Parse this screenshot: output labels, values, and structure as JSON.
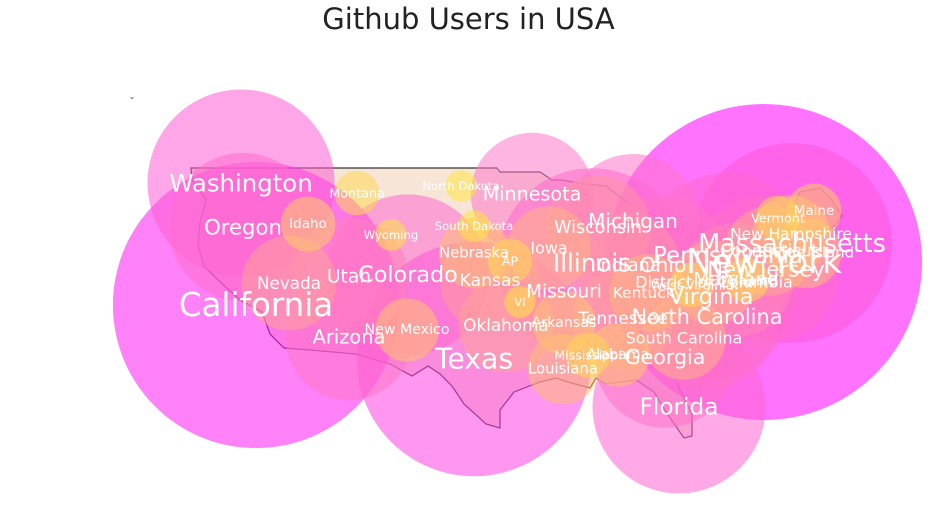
{
  "chart_data": {
    "type": "scatter",
    "title": "Github Users in USA",
    "encoding": "bubble map: circle area proportional to users, colour from pink-magenta (many users) to yellow (few users)",
    "grid": false,
    "legend": "none",
    "colors": {
      "high": "#ff00ff",
      "mid": "#ff66cc",
      "low": "#ffcc66",
      "lowest": "#ffee33",
      "land": "#f7e6d8",
      "outline": "#333333"
    },
    "points": [
      {
        "name": "California",
        "level": 0.82
      },
      {
        "name": "New York",
        "level": 1.0
      },
      {
        "name": "Washington",
        "level": 0.35
      },
      {
        "name": "Texas",
        "level": 0.55
      },
      {
        "name": "Massachusetts",
        "level": 0.4
      },
      {
        "name": "Florida",
        "level": 0.3
      },
      {
        "name": "Illinois",
        "level": 0.36
      },
      {
        "name": "Oregon",
        "level": 0.22
      },
      {
        "name": "Colorado",
        "level": 0.26
      },
      {
        "name": "Virginia",
        "level": 0.27
      },
      {
        "name": "Pennsylvania",
        "level": 0.28
      },
      {
        "name": "Ohio",
        "level": 0.19
      },
      {
        "name": "Michigan",
        "level": 0.18
      },
      {
        "name": "Georgia",
        "level": 0.2
      },
      {
        "name": "North Carolina",
        "level": 0.21
      },
      {
        "name": "Minnesota",
        "level": 0.15
      },
      {
        "name": "New Jersey",
        "level": 0.22
      },
      {
        "name": "Arizona",
        "level": 0.16
      },
      {
        "name": "Utah",
        "level": 0.14
      },
      {
        "name": "Missouri",
        "level": 0.13
      },
      {
        "name": "Maryland",
        "level": 0.13
      },
      {
        "name": "Indiana",
        "level": 0.11
      },
      {
        "name": "Wisconsin",
        "level": 0.11
      },
      {
        "name": "Tennessee",
        "level": 0.1
      },
      {
        "name": "Kansas",
        "level": 0.1
      },
      {
        "name": "Oklahoma",
        "level": 0.09
      },
      {
        "name": "Nevada",
        "level": 0.09
      },
      {
        "name": "Connecticut",
        "level": 0.08
      },
      {
        "name": "Iowa",
        "level": 0.07
      },
      {
        "name": "District of Columbia",
        "level": 0.07
      },
      {
        "name": "New Hampshire",
        "level": 0.06
      },
      {
        "name": "South Carolina",
        "level": 0.07
      },
      {
        "name": "Kentucky",
        "level": 0.06
      },
      {
        "name": "Nebraska",
        "level": 0.05
      },
      {
        "name": "Louisiana",
        "level": 0.05
      },
      {
        "name": "Rhode Island",
        "level": 0.05
      },
      {
        "name": "Arkansas",
        "level": 0.04
      },
      {
        "name": "Alabama",
        "level": 0.04
      },
      {
        "name": "New Mexico",
        "level": 0.04
      },
      {
        "name": "Idaho",
        "level": 0.03
      },
      {
        "name": "Maine",
        "level": 0.03
      },
      {
        "name": "Vermont",
        "level": 0.02
      },
      {
        "name": "Delaware",
        "level": 0.02
      },
      {
        "name": "West Virginia",
        "level": 0.02
      },
      {
        "name": "Montana",
        "level": 0.02
      },
      {
        "name": "Wyoming",
        "level": 0.01
      },
      {
        "name": "Mississippi",
        "level": 0.02
      },
      {
        "name": "South Dakota",
        "level": 0.01
      },
      {
        "name": "North Dakota",
        "level": 0.01
      },
      {
        "name": "AP",
        "level": 0.02
      },
      {
        "name": "VI",
        "level": 0.01
      }
    ]
  }
}
